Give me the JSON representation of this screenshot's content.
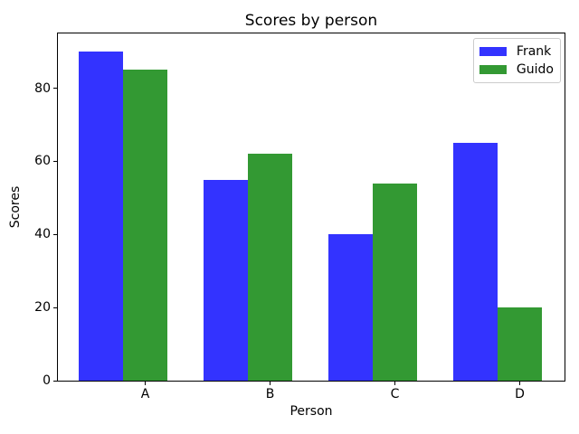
{
  "chart_data": {
    "type": "bar",
    "title": "Scores by person",
    "xlabel": "Person",
    "ylabel": "Scores",
    "categories": [
      "A",
      "B",
      "C",
      "D"
    ],
    "series": [
      {
        "name": "Frank",
        "color": "#3333ff",
        "values": [
          90,
          55,
          40,
          65
        ]
      },
      {
        "name": "Guido",
        "color": "#339933",
        "values": [
          85,
          62,
          54,
          20
        ]
      }
    ],
    "ylim": [
      0,
      95
    ],
    "yticks": [
      0,
      20,
      40,
      60,
      80
    ],
    "legend_position": "upper right",
    "grid": false,
    "background_color": "#ffffff",
    "axis_color": "#000000"
  }
}
